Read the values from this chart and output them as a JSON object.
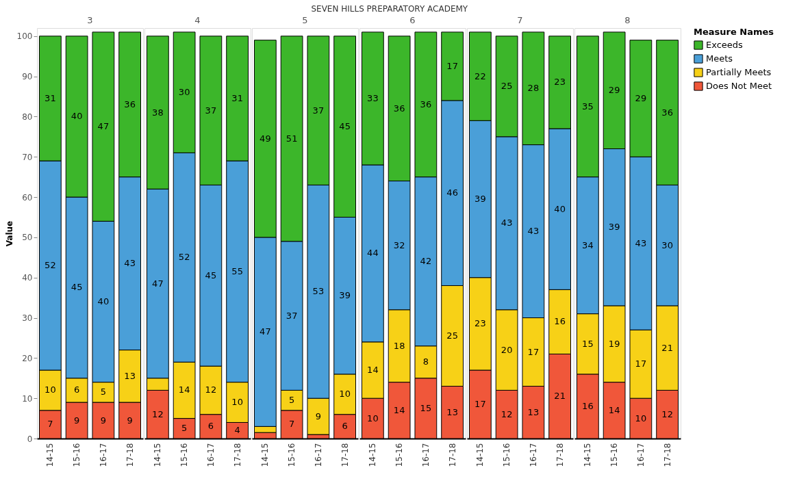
{
  "chart_data": [
    {
      "type": "bar",
      "stacked": true,
      "data_labels": true,
      "legend": "right",
      "legend_title": "Measure Names",
      "title": "3",
      "annotations": [
        "SEVEN HILLS PREPARATORY ACADEMY"
      ],
      "ylabel": "Value",
      "ylim": [
        0,
        102
      ],
      "yticks": [
        0,
        10,
        20,
        30,
        40,
        50,
        60,
        70,
        80,
        90,
        100
      ],
      "categories": [
        "14-15",
        "15-16",
        "16-17",
        "17-18"
      ],
      "series": [
        {
          "name": "Does Not Meet",
          "color": "#f0573a",
          "values": [
            7,
            9,
            9,
            9
          ]
        },
        {
          "name": "Partially Meets",
          "color": "#f7d117",
          "values": [
            10,
            6,
            5,
            13
          ]
        },
        {
          "name": "Meets",
          "color": "#4a9fd8",
          "values": [
            52,
            45,
            40,
            43
          ]
        },
        {
          "name": "Exceeds",
          "color": "#3cb62a",
          "values": [
            31,
            40,
            47,
            36
          ]
        }
      ]
    },
    {
      "type": "bar",
      "stacked": true,
      "legend": "right",
      "title": "4",
      "tick_labels": "x",
      "ylim": [
        0,
        102
      ],
      "yticks": [
        0,
        10,
        20,
        30,
        40,
        50,
        60,
        70,
        80,
        90,
        100
      ],
      "categories": [
        "14-15",
        "15-16",
        "16-17",
        "17-18"
      ],
      "series": [
        {
          "name": "Does Not Meet",
          "color": "#f0573a",
          "values": [
            12,
            5,
            6,
            4
          ],
          "value_labels": [
            "12",
            "5",
            "6",
            "4"
          ]
        },
        {
          "name": "Partially Meets",
          "color": "#f7d117",
          "values": [
            3,
            14,
            12,
            10
          ],
          "value_labels": [
            null,
            "14",
            "12",
            "10"
          ]
        },
        {
          "name": "Meets",
          "color": "#4a9fd8",
          "values": [
            47,
            52,
            45,
            55
          ],
          "value_labels": [
            "47",
            "52",
            "45",
            "55"
          ]
        },
        {
          "name": "Exceeds",
          "color": "#3cb62a",
          "values": [
            38,
            30,
            37,
            31
          ],
          "value_labels": [
            "38",
            "30",
            "37",
            "31"
          ]
        }
      ]
    },
    {
      "type": "bar",
      "stacked": true,
      "legend": "right",
      "title": "5",
      "tick_labels": "x",
      "ylim": [
        0,
        102
      ],
      "yticks": [
        0,
        10,
        20,
        30,
        40,
        50,
        60,
        70,
        80,
        90,
        100
      ],
      "categories": [
        "14-15",
        "15-16",
        "16-17",
        "17-18"
      ],
      "series": [
        {
          "name": "Does Not Meet",
          "color": "#f0573a",
          "values": [
            1.5,
            7,
            1,
            6
          ],
          "value_labels": [
            null,
            "7",
            null,
            "6"
          ]
        },
        {
          "name": "Partially Meets",
          "color": "#f7d117",
          "values": [
            1.5,
            5,
            9,
            10
          ],
          "value_labels": [
            null,
            "5",
            "9",
            "10"
          ]
        },
        {
          "name": "Meets",
          "color": "#4a9fd8",
          "values": [
            47,
            37,
            53,
            39
          ],
          "value_labels": [
            "47",
            "37",
            "53",
            "39"
          ]
        },
        {
          "name": "Exceeds",
          "color": "#3cb62a",
          "values": [
            49,
            51,
            37,
            45
          ],
          "value_labels": [
            "49",
            "51",
            "37",
            "45"
          ]
        }
      ]
    },
    {
      "type": "bar",
      "stacked": true,
      "data_labels": true,
      "legend": "right",
      "title": "6",
      "tick_labels": "x",
      "ylim": [
        0,
        102
      ],
      "yticks": [
        0,
        10,
        20,
        30,
        40,
        50,
        60,
        70,
        80,
        90,
        100
      ],
      "categories": [
        "14-15",
        "15-16",
        "16-17",
        "17-18"
      ],
      "series": [
        {
          "name": "Does Not Meet",
          "color": "#f0573a",
          "values": [
            10,
            14,
            15,
            13
          ]
        },
        {
          "name": "Partially Meets",
          "color": "#f7d117",
          "values": [
            14,
            18,
            8,
            25
          ]
        },
        {
          "name": "Meets",
          "color": "#4a9fd8",
          "values": [
            44,
            32,
            42,
            46
          ]
        },
        {
          "name": "Exceeds",
          "color": "#3cb62a",
          "values": [
            33,
            36,
            36,
            17
          ]
        }
      ]
    },
    {
      "type": "bar",
      "stacked": true,
      "data_labels": true,
      "legend": "right",
      "title": "7",
      "tick_labels": "x",
      "ylim": [
        0,
        102
      ],
      "yticks": [
        0,
        10,
        20,
        30,
        40,
        50,
        60,
        70,
        80,
        90,
        100
      ],
      "categories": [
        "14-15",
        "15-16",
        "16-17",
        "17-18"
      ],
      "series": [
        {
          "name": "Does Not Meet",
          "color": "#f0573a",
          "values": [
            17,
            12,
            13,
            21
          ]
        },
        {
          "name": "Partially Meets",
          "color": "#f7d117",
          "values": [
            23,
            20,
            17,
            16
          ]
        },
        {
          "name": "Meets",
          "color": "#4a9fd8",
          "values": [
            39,
            43,
            43,
            40
          ]
        },
        {
          "name": "Exceeds",
          "color": "#3cb62a",
          "values": [
            22,
            25,
            28,
            23
          ]
        }
      ]
    },
    {
      "type": "bar",
      "stacked": true,
      "data_labels": true,
      "title": "8",
      "tick_labels": "x",
      "legend": "right",
      "ylim": [
        0,
        102
      ],
      "yticks": [
        0,
        10,
        20,
        30,
        40,
        50,
        60,
        70,
        80,
        90,
        100
      ],
      "categories": [
        "14-15",
        "15-16",
        "16-17",
        "17-18"
      ],
      "series": [
        {
          "name": "Does Not Meet",
          "color": "#f0573a",
          "values": [
            16,
            14,
            10,
            12
          ]
        },
        {
          "name": "Partially Meets",
          "color": "#f7d117",
          "values": [
            15,
            19,
            17,
            21
          ]
        },
        {
          "name": "Meets",
          "color": "#4a9fd8",
          "values": [
            34,
            39,
            43,
            30
          ]
        },
        {
          "name": "Exceeds",
          "color": "#3cb62a",
          "values": [
            35,
            29,
            29,
            36
          ]
        }
      ]
    }
  ]
}
